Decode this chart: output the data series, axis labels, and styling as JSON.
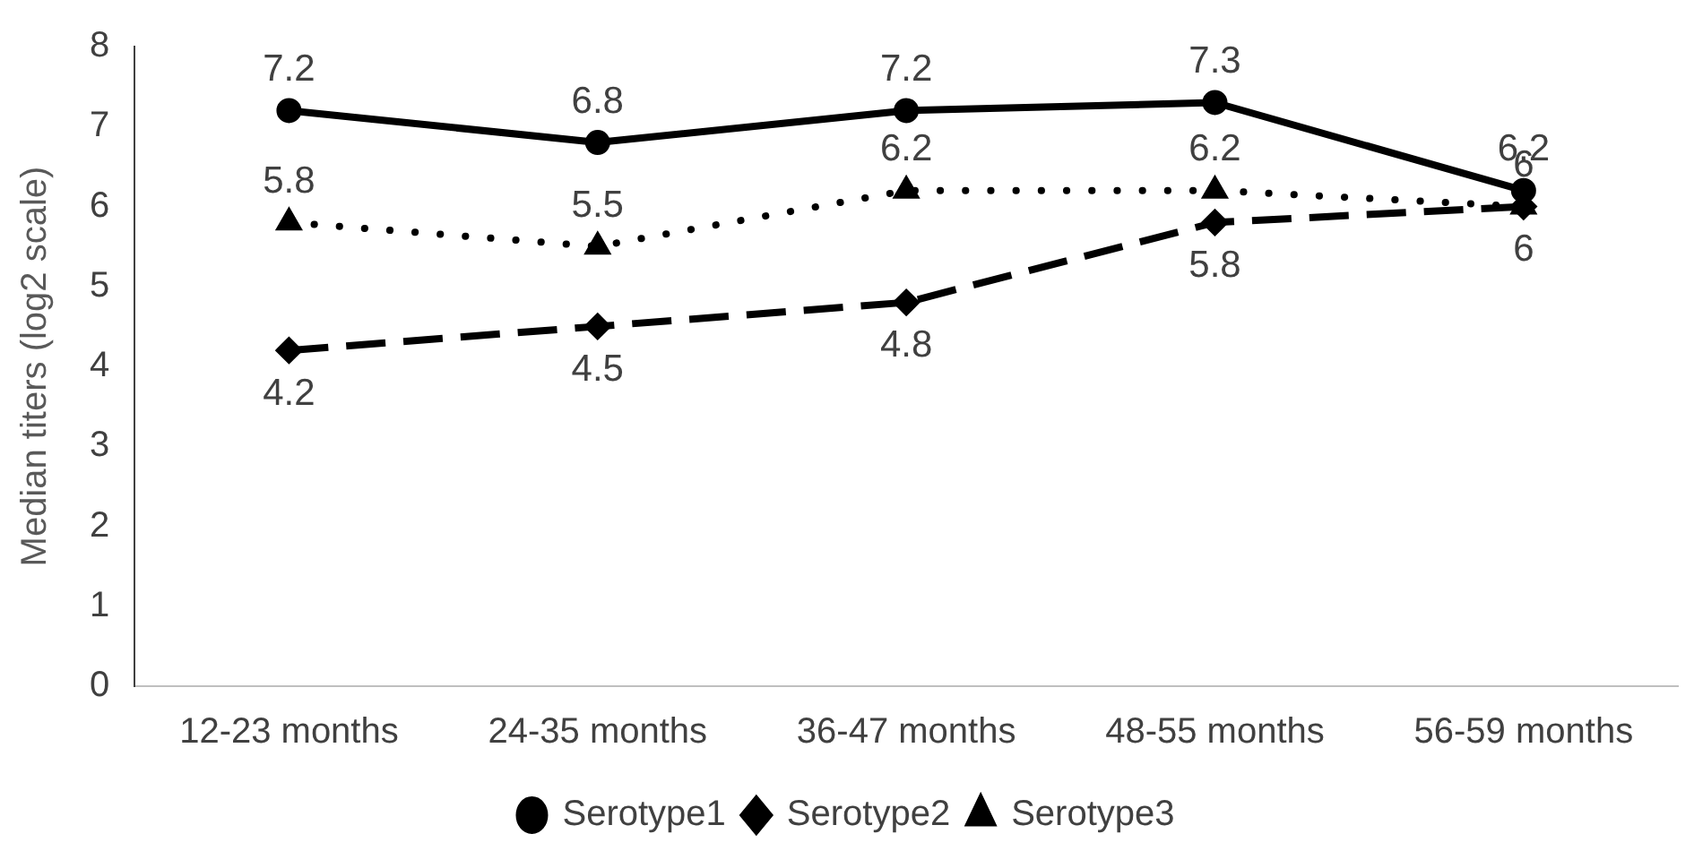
{
  "chart_data": {
    "type": "line",
    "ylabel": "Median titers (log2 scale)",
    "categories": [
      "12-23 months",
      "24-35 months",
      "36-47 months",
      "48-55 months",
      "56-59 months"
    ],
    "series": [
      {
        "name": "Serotype1",
        "color": "#000000",
        "values": [
          7.2,
          6.8,
          7.2,
          7.3,
          6.2
        ],
        "marker": "circle",
        "line_style": "solid"
      },
      {
        "name": "Serotype2",
        "color": "#000000",
        "values": [
          4.2,
          4.5,
          4.8,
          5.8,
          6
        ],
        "marker": "diamond",
        "line_style": "dashed"
      },
      {
        "name": "Serotype3",
        "color": "#000000",
        "values": [
          5.8,
          5.5,
          6.2,
          6.2,
          6
        ],
        "marker": "triangle",
        "line_style": "dotted"
      }
    ],
    "ylim": [
      0,
      8
    ],
    "yticks": [
      0,
      1,
      2,
      3,
      4,
      5,
      6,
      7,
      8
    ],
    "grid": false,
    "legend": "bottom",
    "data_labels": true
  }
}
